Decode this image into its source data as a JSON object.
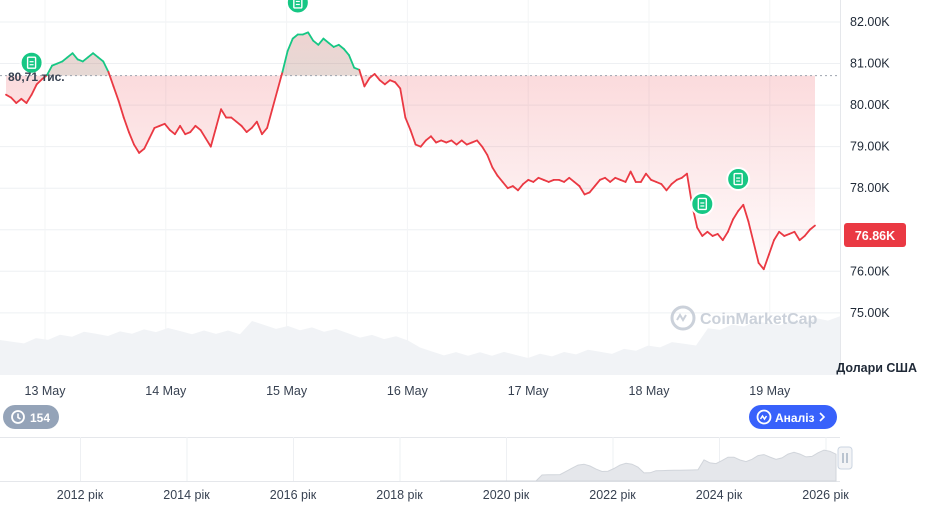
{
  "chart_data": {
    "type": "line",
    "y_unit_label": "Долари США",
    "y_ticks": [
      "82.00K",
      "81.00K",
      "80.00K",
      "79.00K",
      "78.00K",
      "77.00K",
      "76.00K",
      "75.00K"
    ],
    "y_tick_values": [
      82000,
      81000,
      80000,
      79000,
      78000,
      77000,
      76000,
      75000
    ],
    "ylim": [
      74650,
      82400
    ],
    "x_ticks": [
      "13 May",
      "14 May",
      "15 May",
      "16 May",
      "17 May",
      "18 May",
      "19 May"
    ],
    "reference_value": 80710,
    "reference_label": "80,71 тис.",
    "current_value_label": "76.86K",
    "series": [
      {
        "x_hours": [
          0,
          1,
          2,
          3,
          4,
          5,
          6,
          7,
          8,
          9,
          10,
          11,
          12,
          13,
          14,
          15,
          16,
          17,
          18,
          19,
          20,
          21,
          22,
          23,
          24,
          25,
          26,
          27,
          28,
          29,
          30,
          31,
          32,
          33,
          34,
          35,
          36,
          37,
          38,
          39,
          40,
          41,
          42,
          43,
          44,
          45,
          46,
          47,
          48,
          49,
          50,
          51,
          52,
          53,
          54,
          55,
          56,
          57,
          58,
          59,
          60,
          61,
          62,
          63,
          64,
          65,
          66,
          67,
          68,
          69,
          70,
          71,
          72,
          73,
          74,
          75,
          76,
          77,
          78,
          79,
          80,
          81,
          82,
          83,
          84,
          85,
          86,
          87,
          88,
          89,
          90,
          91,
          92,
          93,
          94,
          95,
          96,
          97,
          98,
          99,
          100,
          101,
          102,
          103,
          104,
          105,
          106,
          107,
          108,
          109,
          110,
          111,
          112,
          113,
          114,
          115,
          116,
          117,
          118,
          119,
          120,
          121,
          122,
          123,
          124,
          125,
          126,
          127,
          128,
          129,
          130,
          131,
          132,
          133,
          134,
          135,
          136,
          137,
          138,
          139,
          140,
          141,
          142,
          143,
          144,
          145,
          146,
          147,
          148,
          149,
          150,
          151,
          152,
          153,
          154,
          155,
          156,
          157,
          158
        ],
        "values": [
          80250,
          80180,
          80050,
          80150,
          80050,
          80250,
          80500,
          80620,
          80720,
          80950,
          81000,
          81050,
          81150,
          81250,
          81100,
          81050,
          81150,
          81250,
          81150,
          81050,
          80800,
          80450,
          80100,
          79700,
          79350,
          79050,
          78850,
          78950,
          79200,
          79450,
          79500,
          79550,
          79400,
          79300,
          79500,
          79300,
          79350,
          79500,
          79400,
          79200,
          79000,
          79450,
          79900,
          79700,
          79700,
          79600,
          79500,
          79350,
          79450,
          79600,
          79300,
          79450,
          79900,
          80350,
          80800,
          81300,
          81600,
          81700,
          81700,
          81750,
          81550,
          81450,
          81600,
          81500,
          81400,
          81450,
          81350,
          81200,
          80900,
          80850,
          80450,
          80650,
          80750,
          80600,
          80500,
          80600,
          80550,
          80400,
          79700,
          79400,
          79050,
          79000,
          79150,
          79250,
          79100,
          79150,
          79100,
          79150,
          79050,
          79150,
          79050,
          79100,
          79150,
          79000,
          78800,
          78500,
          78300,
          78150,
          78000,
          78050,
          77950,
          78100,
          78200,
          78150,
          78250,
          78200,
          78150,
          78200,
          78200,
          78150,
          78250,
          78150,
          78050,
          77850,
          77900,
          78050,
          78200,
          78250,
          78150,
          78250,
          78200,
          78150,
          78400,
          78150,
          78150,
          78350,
          78200,
          78150,
          78100,
          77950,
          78100,
          78200,
          78250,
          78350,
          77600,
          77050,
          76850,
          76950,
          76850,
          76900,
          76750,
          76950,
          77250,
          77450,
          77600,
          77200,
          76700,
          76200,
          76050,
          76400,
          76750,
          76950,
          76850,
          76900,
          76950,
          76750,
          76850,
          77000,
          77100
        ]
      }
    ],
    "events": [
      {
        "hour": 5,
        "icon": "document-icon"
      },
      {
        "hour": 57,
        "icon": "document-icon"
      },
      {
        "hour": 136,
        "icon": "document-icon"
      },
      {
        "hour": 143,
        "icon": "document-icon"
      }
    ],
    "grid": true,
    "colors": {
      "up": "#16c784",
      "down": "#ea3943",
      "up_fill": "#16c784",
      "down_fill": "#ea3943"
    }
  },
  "history_badge": {
    "count": "154",
    "icon": "history-icon"
  },
  "analysis_button": {
    "label": "Аналіз",
    "icon": "robot-icon",
    "arrow": "chevron-right-icon"
  },
  "overview": {
    "years": [
      "2012 рік",
      "2014 рік",
      "2016 рік",
      "2018 рік",
      "2020 рік",
      "2022 рік",
      "2024 рік",
      "2026 рік"
    ],
    "handle_icon": "pause-handle-icon"
  },
  "watermark": {
    "text": "CoinMarketCap",
    "icon": "coinmarketcap-logo-icon"
  },
  "colors": {
    "accent": "#3861fb",
    "grid": "#e5e7eb",
    "badge_gray": "#94a3b8"
  }
}
